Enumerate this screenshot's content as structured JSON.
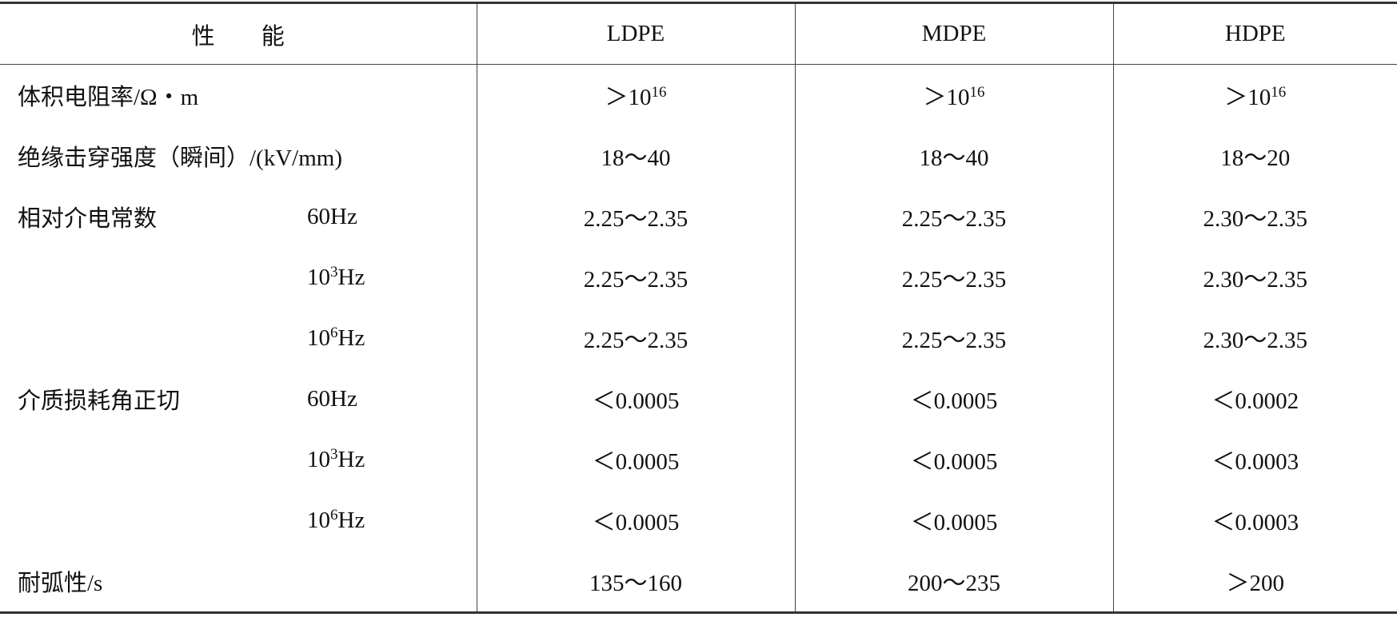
{
  "table": {
    "header": [
      "性　　能",
      "LDPE",
      "MDPE",
      "HDPE"
    ],
    "rows": [
      {
        "property": "体积电阻率/Ω・m",
        "values": [
          {
            "text": "＞10",
            "sup": "16"
          },
          {
            "text": "＞10",
            "sup": "16"
          },
          {
            "text": "＞10",
            "sup": "16"
          }
        ]
      },
      {
        "property": "绝缘击穿强度（瞬间）/(kV/mm)",
        "values": [
          "18～40",
          "18～40",
          "18～20"
        ]
      },
      {
        "property": "相对介电常数",
        "condition": {
          "text": "60Hz"
        },
        "values": [
          "2.25～2.35",
          "2.25～2.35",
          "2.30～2.35"
        ]
      },
      {
        "condition": {
          "text": "10",
          "sup": "3",
          "after": "Hz"
        },
        "values": [
          "2.25～2.35",
          "2.25～2.35",
          "2.30～2.35"
        ]
      },
      {
        "condition": {
          "text": "10",
          "sup": "6",
          "after": "Hz"
        },
        "values": [
          "2.25～2.35",
          "2.25～2.35",
          "2.30～2.35"
        ]
      },
      {
        "property": "介质损耗角正切",
        "condition": {
          "text": "60Hz"
        },
        "values": [
          "＜0.0005",
          "＜0.0005",
          "＜0.0002"
        ]
      },
      {
        "condition": {
          "text": "10",
          "sup": "3",
          "after": "Hz"
        },
        "values": [
          "＜0.0005",
          "＜0.0005",
          "＜0.0003"
        ]
      },
      {
        "condition": {
          "text": "10",
          "sup": "6",
          "after": "Hz"
        },
        "values": [
          "＜0.0005",
          "＜0.0005",
          "＜0.0003"
        ]
      },
      {
        "property": "耐弧性/s",
        "values": [
          "135～160",
          "200～235",
          "＞200"
        ]
      }
    ]
  }
}
